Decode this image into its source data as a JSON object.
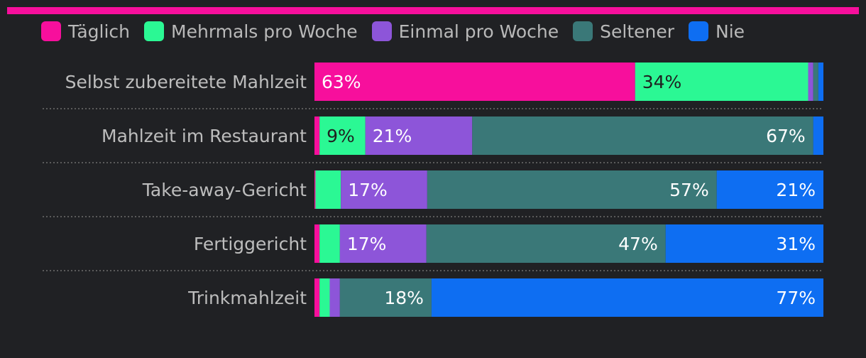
{
  "colors": {
    "background": "#202124",
    "accent": "#f70f9c",
    "label_text": "#bdbdbd",
    "legend_text": "#b9b9b9",
    "divider": "#5b5b5b"
  },
  "chart_data": {
    "type": "bar",
    "orientation": "horizontal",
    "stacked": true,
    "normalized_percent": true,
    "title": "",
    "xlabel": "",
    "ylabel": "",
    "xlim": [
      0,
      100
    ],
    "legend_position": "top",
    "categories": [
      "Selbst zubereitete Mahlzeit",
      "Mahlzeit im Restaurant",
      "Take-away-Gericht",
      "Fertiggericht",
      "Trinkmahlzeit"
    ],
    "series": [
      {
        "name": "Täglich",
        "color": "#f70f9c",
        "label_color": "#ffffff",
        "values": [
          63,
          1,
          0.2,
          1,
          1
        ],
        "labels": [
          "63%",
          "",
          "",
          "",
          ""
        ]
      },
      {
        "name": "Mehrmals pro Woche",
        "color": "#2bf894",
        "label_color": "#1f1f1f",
        "values": [
          34,
          9,
          5,
          4,
          2
        ],
        "labels": [
          "34%",
          "9%",
          "",
          "",
          ""
        ]
      },
      {
        "name": "Einmal pro Woche",
        "color": "#8d55d9",
        "label_color": "#ffffff",
        "values": [
          1,
          21,
          17,
          17,
          2
        ],
        "labels": [
          "",
          "21%",
          "17%",
          "17%",
          ""
        ]
      },
      {
        "name": "Seltener",
        "color": "#3a7878",
        "label_color": "#ffffff",
        "values": [
          1,
          67,
          57,
          47,
          18
        ],
        "labels": [
          "",
          "67%",
          "57%",
          "47%",
          "18%"
        ]
      },
      {
        "name": "Nie",
        "color": "#0e6ef2",
        "label_color": "#ffffff",
        "values": [
          1,
          2,
          21,
          31,
          77
        ],
        "labels": [
          "",
          "",
          "21%",
          "31%",
          "77%"
        ]
      }
    ]
  }
}
